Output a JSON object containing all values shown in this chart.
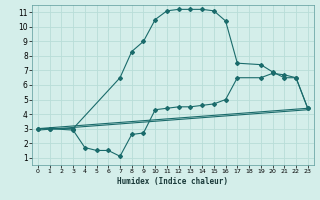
{
  "title": "",
  "xlabel": "Humidex (Indice chaleur)",
  "background_color": "#d4eeea",
  "grid_color": "#b8ddd8",
  "line_color": "#1a6b6b",
  "xlim": [
    -0.5,
    23.5
  ],
  "ylim": [
    0.5,
    11.5
  ],
  "xticks": [
    0,
    1,
    2,
    3,
    4,
    5,
    6,
    7,
    8,
    9,
    10,
    11,
    12,
    13,
    14,
    15,
    16,
    17,
    18,
    19,
    20,
    21,
    22,
    23
  ],
  "yticks": [
    1,
    2,
    3,
    4,
    5,
    6,
    7,
    8,
    9,
    10,
    11
  ],
  "line1_x": [
    0,
    1,
    3,
    7,
    8,
    9,
    10,
    11,
    12,
    13,
    14,
    15,
    16,
    17,
    19,
    20,
    21,
    22,
    23
  ],
  "line1_y": [
    3.0,
    3.0,
    3.0,
    6.5,
    8.3,
    9.0,
    10.5,
    11.1,
    11.2,
    11.2,
    11.2,
    11.1,
    10.4,
    7.5,
    7.4,
    6.9,
    6.5,
    6.5,
    4.4
  ],
  "line2_x": [
    0,
    1,
    3,
    4,
    5,
    6,
    7,
    8,
    9,
    10,
    11,
    12,
    13,
    14,
    15,
    16,
    17,
    19,
    20,
    21,
    22,
    23
  ],
  "line2_y": [
    3.0,
    3.0,
    2.9,
    1.7,
    1.5,
    1.5,
    1.1,
    2.6,
    2.7,
    4.3,
    4.4,
    4.5,
    4.5,
    4.6,
    4.7,
    5.0,
    6.5,
    6.5,
    6.8,
    6.7,
    6.5,
    4.4
  ],
  "line3_x": [
    0,
    23
  ],
  "line3_y": [
    3.0,
    4.4
  ],
  "line4_x": [
    0,
    23
  ],
  "line4_y": [
    2.9,
    4.3
  ]
}
